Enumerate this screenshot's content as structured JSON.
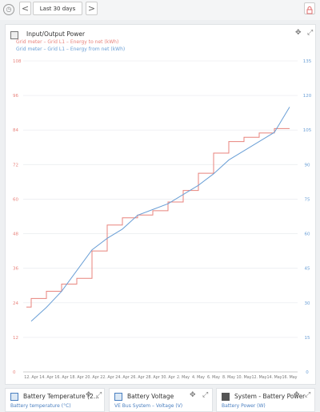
{
  "topbar": {
    "range_label": "Last 30 days",
    "prev_glyph": "<",
    "next_glyph": ">"
  },
  "panel": {
    "title": "Input/Output Power",
    "legend": [
      {
        "label": "Grid meter – Grid L1 – Energy to net (kWh)",
        "color": "#e8837c"
      },
      {
        "label": "Grid meter – Grid L1 – Energy from net (kWh)",
        "color": "#6a9fd6"
      }
    ]
  },
  "chart_data": {
    "type": "line",
    "x": [
      "12. Apr",
      "14. Apr",
      "16. Apr",
      "18. Apr",
      "20. Apr",
      "22. Apr",
      "24. Apr",
      "26. Apr",
      "28. Apr",
      "30. Apr",
      "2. May",
      "4. May",
      "6. May",
      "8. May",
      "10. May",
      "12. May",
      "14. May",
      "16. May"
    ],
    "left_axis": {
      "ticks": [
        0,
        12,
        24,
        36,
        48,
        60,
        72,
        84,
        96,
        108
      ],
      "color": "#e8837c"
    },
    "right_axis": {
      "ticks": [
        0,
        15,
        30,
        45,
        60,
        75,
        90,
        105,
        120,
        135
      ],
      "color": "#6a9fd6"
    },
    "series": [
      {
        "name": "Grid meter – Grid L1 – Energy to net (kWh)",
        "color": "#e8837c",
        "axis": "left",
        "values": [
          22.5,
          25.5,
          28,
          30.5,
          32.5,
          42,
          51,
          53.5,
          54.5,
          56,
          59,
          63,
          69,
          76,
          80,
          81.5,
          83,
          84.5
        ]
      },
      {
        "name": "Grid meter – Grid L1 – Energy from net (kWh)",
        "color": "#6a9fd6",
        "axis": "right",
        "values": [
          22,
          28,
          35,
          44,
          53,
          58,
          62,
          68,
          70.5,
          73,
          77,
          81,
          86,
          92,
          96,
          100,
          104,
          115
        ]
      }
    ]
  },
  "cards": [
    {
      "title": "Battery Temperature (2...",
      "legend": "Battery temperature (°C)"
    },
    {
      "title": "Battery Voltage",
      "legend": "VE Bus System – Voltage (V)"
    },
    {
      "title": "System - Battery Power",
      "legend": "Battery Power (W)"
    }
  ],
  "colors": {
    "accent_red": "#e8837c",
    "accent_blue": "#6a9fd6"
  }
}
